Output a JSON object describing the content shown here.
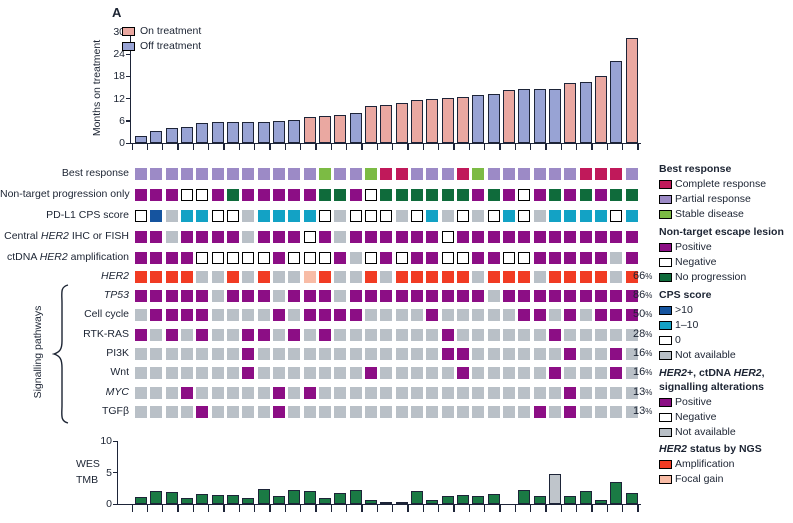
{
  "panel_label": "A",
  "text_color": "#1c2433",
  "code_colors": {
    "p": "#9C8AC6",
    "g": "#7CBB44",
    "r": "#C0195A",
    "M": "#8C0E85",
    "W": "#FFFFFF",
    "D": "#0F6B3B",
    "B": "#15549F",
    "C": "#13A2C5",
    "N": "#B9C0C7",
    "A": "#F13B23",
    "F": "#F8BCA6"
  },
  "chart_data": [
    {
      "type": "bar",
      "name": "months-on-treatment",
      "ylabel": "Months on treatment",
      "yticks": [
        0,
        6,
        12,
        18,
        24,
        30
      ],
      "ylim": [
        0,
        30
      ],
      "legend": [
        {
          "label": "On treatment",
          "color": "#EAA8A1"
        },
        {
          "label": "Off treatment",
          "color": "#98A3D4"
        }
      ],
      "bar_colors": {
        "P": "#EAA8A1",
        "B": "#98A3D4"
      },
      "values": [
        2.0,
        3.3,
        4.0,
        4.4,
        5.5,
        5.7,
        5.7,
        5.7,
        5.8,
        6.0,
        6.2,
        7.0,
        7.2,
        7.5,
        8.2,
        9.9,
        10.2,
        10.8,
        11.5,
        11.8,
        12.1,
        12.4,
        13.0,
        13.2,
        14.3,
        14.6,
        14.6,
        14.6,
        16.2,
        16.6,
        18.0,
        22.2,
        28.4
      ],
      "status": "BBBBBBBBBBBPPPBPPPPPPPBBPBBBPBPBP"
    },
    {
      "type": "heatmap",
      "name": "oncoprint",
      "columns": 33,
      "rows": [
        {
          "label": "Best response",
          "parts": [
            [
              "Best response",
              0
            ]
          ],
          "percent": null,
          "cells": "ppppppppppppgppgrrppprgpppppprrrp"
        },
        {
          "label": "Non-target progression only",
          "parts": [
            [
              "Non-target progression only",
              0
            ]
          ],
          "percent": null,
          "cells": "MMMWWMDMMMMMDDMWDDDDDDMDMWMDMDMDD"
        },
        {
          "label": "PD-L1 CPS score",
          "parts": [
            [
              "PD-L1 CPS score",
              0
            ]
          ],
          "percent": null,
          "cells": "WBNCCWWNCCCCWNWWWNWCNWNWCWNCCCCWC"
        },
        {
          "label": "Central HER2 IHC or FISH",
          "parts": [
            [
              "Central ",
              0
            ],
            [
              "HER2",
              1
            ],
            [
              " IHC or FISH",
              0
            ]
          ],
          "percent": null,
          "cells": "MMNMMMMNMMMWMNMMMMMMWMMMMMMMMMMMM"
        },
        {
          "label": "ctDNA HER2 amplification",
          "parts": [
            [
              "ctDNA ",
              0
            ],
            [
              "HER2",
              1
            ],
            [
              " amplification",
              0
            ]
          ],
          "percent": null,
          "cells": "MMMMWWWWWMWWWMNWMWMMWWMMWWMMMMMNM"
        },
        {
          "label": "HER2",
          "parts": [
            [
              "HER2",
              1
            ]
          ],
          "percent": "66%",
          "cells": "AAAANNANANNFANNANAAAAANAAANAAAANA"
        },
        {
          "label": "TP53",
          "parts": [
            [
              "TP53",
              1
            ]
          ],
          "percent": "86%",
          "cells": "MMMMMNMMMNMMMNMMMMMMMMMNMMMMMMMMM"
        },
        {
          "label": "Cell cycle",
          "parts": [
            [
              "Cell cycle",
              0
            ]
          ],
          "percent": "50%",
          "cells": "NMMMMNNNNMNMMMMNNNNMNNNNNMMNMNMMM"
        },
        {
          "label": "RTK-RAS",
          "parts": [
            [
              "RTK-RAS",
              0
            ]
          ],
          "percent": "28%",
          "cells": "MNMNMNNMMNMNMNNNNNNNMNNNNNNMNNNNN"
        },
        {
          "label": "PI3K",
          "parts": [
            [
              "PI3K",
              0
            ]
          ],
          "percent": "16%",
          "cells": "NNNNNNNMNNNNNNNNNNNNMMNNNNNNMNNMN"
        },
        {
          "label": "Wnt",
          "parts": [
            [
              "Wnt",
              0
            ]
          ],
          "percent": "16%",
          "cells": "NNNNNNNMNNNNNNNMNNNNNMNNNNNMNNNMN"
        },
        {
          "label": "MYC",
          "parts": [
            [
              "MYC",
              1
            ]
          ],
          "percent": "13%",
          "cells": "NNNMNNNNNMNMNNNNNNNNNNNNNNNNMNNNN"
        },
        {
          "label": "TGFβ",
          "parts": [
            [
              "TGFβ",
              0
            ]
          ],
          "percent": "13%",
          "cells": "NNNNMNNNNMNNNNNNNNNNNNNNNNMNMNNNN"
        }
      ],
      "group_label": "Signalling pathways"
    },
    {
      "type": "bar",
      "name": "wes-tmb",
      "ylabel_lines": [
        "WES",
        "TMB"
      ],
      "yticks": [
        0,
        5,
        10
      ],
      "ylim": [
        0,
        10
      ],
      "bar_colors": {
        "G": "#1A7A44",
        "N": "#BFC5CB"
      },
      "values": [
        1.1,
        2.1,
        1.9,
        0.9,
        1.6,
        1.5,
        1.5,
        0.9,
        2.4,
        1.3,
        2.3,
        2.0,
        0.9,
        1.8,
        2.3,
        0.6,
        0.3,
        0.3,
        2.0,
        0.65,
        1.3,
        1.4,
        1.3,
        1.6,
        0,
        2.3,
        1.2,
        4.7,
        1.3,
        2.0,
        0.65,
        3.5,
        1.7
      ],
      "status": "GGGGGGGGGGGGGGGGGGGGGGGGGGGNGGGGG"
    }
  ],
  "legend_sections": [
    {
      "header_lines": [
        [
          [
            "Best response",
            0
          ]
        ]
      ],
      "items": [
        {
          "label": "Complete response",
          "color": "#C0195A"
        },
        {
          "label": "Partial response",
          "color": "#9C8AC6"
        },
        {
          "label": "Stable disease",
          "color": "#7CBB44"
        }
      ]
    },
    {
      "header_lines": [
        [
          [
            "Non-target escape lesion",
            0
          ]
        ]
      ],
      "items": [
        {
          "label": "Positive",
          "color": "#8C0E85"
        },
        {
          "label": "Negative",
          "color": "#FFFFFF"
        },
        {
          "label": "No progression",
          "color": "#0F6B3B"
        }
      ]
    },
    {
      "header_lines": [
        [
          [
            "CPS score",
            0
          ]
        ]
      ],
      "items": [
        {
          "label": ">10",
          "color": "#15549F"
        },
        {
          "label": "1–10",
          "color": "#13A2C5"
        },
        {
          "label": "0",
          "color": "#FFFFFF"
        },
        {
          "label": "Not available",
          "color": "#B9C0C7"
        }
      ]
    },
    {
      "header_lines": [
        [
          [
            "HER2",
            1
          ],
          [
            "+, ctDNA ",
            0
          ],
          [
            "HER2",
            1
          ],
          [
            ",",
            0
          ]
        ],
        [
          [
            "signalling alterations",
            0
          ]
        ]
      ],
      "items": [
        {
          "label": "Positive",
          "color": "#8C0E85"
        },
        {
          "label": "Negative",
          "color": "#FFFFFF"
        },
        {
          "label": "Not available",
          "color": "#B9C0C7"
        }
      ]
    },
    {
      "header_lines": [
        [
          [
            "HER2",
            1
          ],
          [
            " status by NGS",
            0
          ]
        ]
      ],
      "items": [
        {
          "label": "Amplification",
          "color": "#F13B23"
        },
        {
          "label": "Focal gain",
          "color": "#F8BCA6"
        }
      ]
    }
  ]
}
